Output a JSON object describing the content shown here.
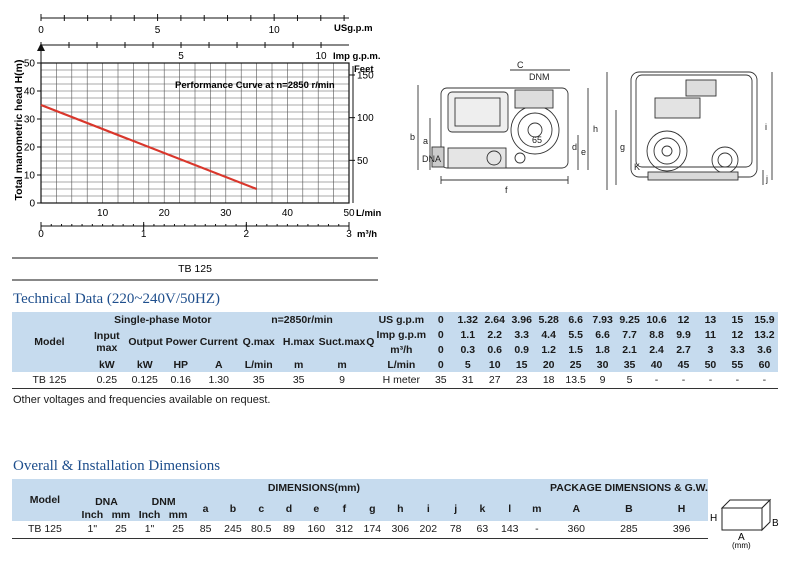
{
  "chart_data": {
    "type": "line",
    "title": "Performance Curve at n=2850 r/min",
    "ylabel": "Total manometric head H(m)",
    "ylim": [
      0,
      50
    ],
    "y_ticks": [
      "0",
      "10",
      "20",
      "30",
      "40",
      "50"
    ],
    "feet_label": "Feet",
    "feet_ticks": [
      "50",
      "100",
      "150"
    ],
    "xlabel": "L/min",
    "xlim": [
      0,
      50
    ],
    "x_ticks": [
      "10",
      "20",
      "30",
      "40",
      "50"
    ],
    "m3h_label": "m³/h",
    "m3h_ticks": [
      "0",
      "1",
      "2",
      "3"
    ],
    "usgpm_label": "USg.p.m",
    "usgpm_ticks": [
      "0",
      "5",
      "10"
    ],
    "impgpm_label": "Imp g.p.m.",
    "impgpm_ticks": [
      "5",
      "10"
    ],
    "series": [
      {
        "name": "TB 125",
        "x": [
          0,
          35
        ],
        "y": [
          35,
          5
        ],
        "color": "#d9362b"
      }
    ],
    "caption": "TB 125"
  },
  "diagram": {
    "labels_left": [
      "C",
      "DNM",
      "65",
      "b",
      "a",
      "DNA",
      "d",
      "e",
      "f",
      "h"
    ],
    "labels_right": [
      "g",
      "i",
      "j",
      "K"
    ]
  },
  "tech": {
    "title": "Technical Data (220~240V/50HZ)",
    "col_model": "Model",
    "motor_header": "Single-phase Motor",
    "speed_header": "n=2850r/min",
    "input": "Input",
    "max": "max",
    "kw": "kW",
    "output_power": "Output Power",
    "hp": "HP",
    "current": "Current",
    "amp": "A",
    "qmax": "Q.max",
    "hmax": "H.max",
    "suctmax": "Suct.max",
    "lmin": "L/min",
    "m": "m",
    "q": "Q",
    "flow_rows": [
      {
        "label": "US g.p.m",
        "values": [
          "0",
          "1.32",
          "2.64",
          "3.96",
          "5.28",
          "6.6",
          "7.93",
          "9.25",
          "10.6",
          "12",
          "13",
          "15",
          "15.9"
        ]
      },
      {
        "label": "Imp g.p.m",
        "values": [
          "0",
          "1.1",
          "2.2",
          "3.3",
          "4.4",
          "5.5",
          "6.6",
          "7.7",
          "8.8",
          "9.9",
          "11",
          "12",
          "13.2"
        ]
      },
      {
        "label": "m³/h",
        "values": [
          "0",
          "0.3",
          "0.6",
          "0.9",
          "1.2",
          "1.5",
          "1.8",
          "2.1",
          "2.4",
          "2.7",
          "3",
          "3.3",
          "3.6"
        ]
      },
      {
        "label": "L/min",
        "values": [
          "0",
          "5",
          "10",
          "15",
          "20",
          "25",
          "30",
          "35",
          "40",
          "45",
          "50",
          "55",
          "60"
        ]
      }
    ],
    "hmeter_label": "H meter",
    "row": {
      "model": "TB 125",
      "input_kw": "0.25",
      "out_kw": "0.125",
      "out_hp": "0.16",
      "current": "1.30",
      "qmax": "35",
      "hmax": "35",
      "suct": "9",
      "h_values": [
        "35",
        "31",
        "27",
        "23",
        "18",
        "13.5",
        "9",
        "5",
        "-",
        "-",
        "-",
        "-",
        "-"
      ]
    },
    "note": "Other voltages and frequencies available on request."
  },
  "dims": {
    "title": "Overall & Installation Dimensions",
    "col_model": "Model",
    "dimensions_header": "DIMENSIONS(mm)",
    "package_header": "PACKAGE DIMENSIONS & G.W.",
    "dna": "DNA",
    "dnm": "DNM",
    "inch": "Inch",
    "mm": "mm",
    "letters": [
      "a",
      "b",
      "c",
      "d",
      "e",
      "f",
      "g",
      "h",
      "i",
      "j",
      "k",
      "l",
      "m"
    ],
    "pkg_letters": [
      "A",
      "B",
      "H"
    ],
    "row": {
      "model": "TB 125",
      "dna_inch": "1\"",
      "dna_mm": "25",
      "dnm_inch": "1\"",
      "dnm_mm": "25",
      "values": [
        "85",
        "245",
        "80.5",
        "89",
        "160",
        "312",
        "174",
        "306",
        "202",
        "78",
        "63",
        "143",
        "-"
      ],
      "pkg": [
        "360",
        "285",
        "396"
      ]
    },
    "box": {
      "h": "H",
      "b": "B",
      "a": "A",
      "unit": "(mm)"
    }
  }
}
